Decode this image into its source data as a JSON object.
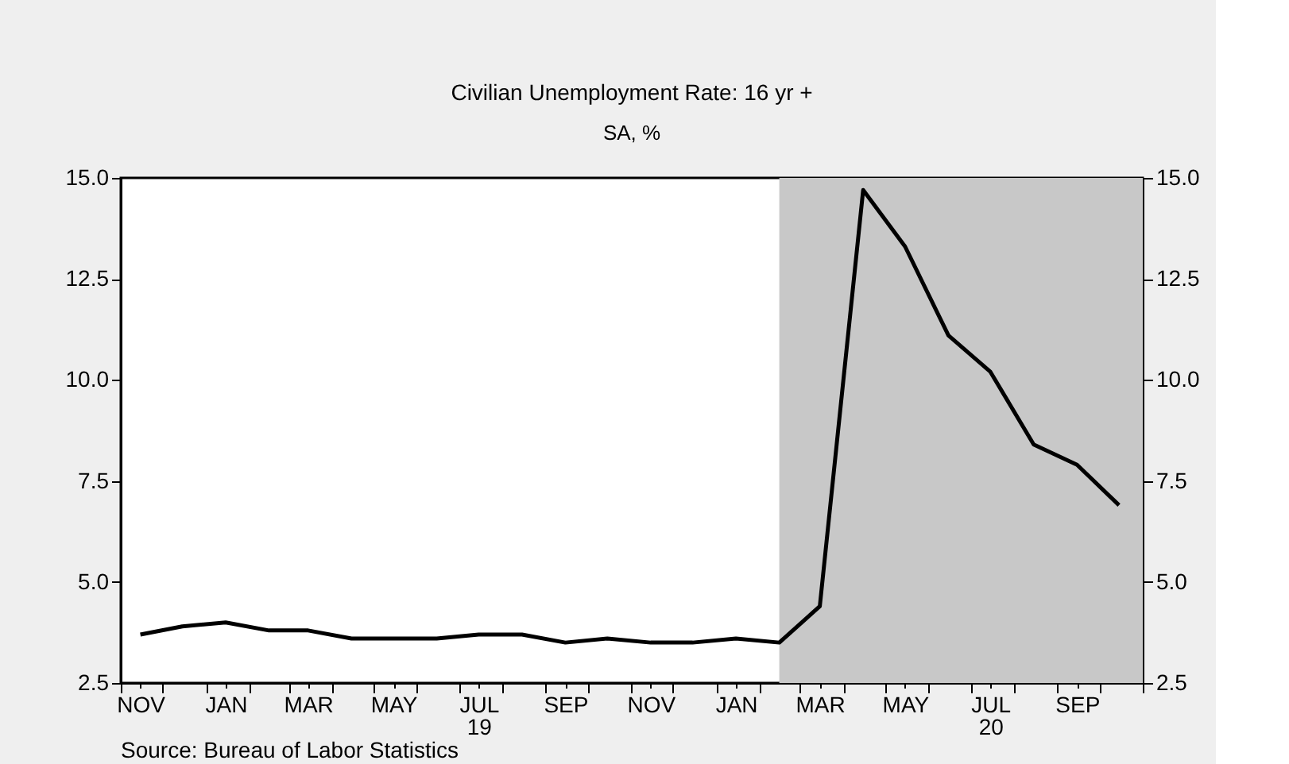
{
  "chart_data": {
    "type": "line",
    "title": "Civilian Unemployment Rate: 16 yr +",
    "subtitle": "SA, %",
    "annotations": [
      "Source:  Bureau of Labor Statistics"
    ],
    "x": [
      "2018-11-15",
      "2018-12-15",
      "2019-01-15",
      "2019-02-15",
      "2019-03-15",
      "2019-04-15",
      "2019-05-15",
      "2019-06-15",
      "2019-07-15",
      "2019-08-15",
      "2019-09-15",
      "2019-10-15",
      "2019-11-15",
      "2019-12-15",
      "2020-01-15",
      "2020-02-15",
      "2020-03-15",
      "2020-04-15",
      "2020-05-15",
      "2020-06-15",
      "2020-07-15",
      "2020-08-15",
      "2020-09-15",
      "2020-10-15"
    ],
    "series": [
      {
        "color": "#000000",
        "values": [
          3.7,
          3.9,
          4.0,
          3.8,
          3.8,
          3.6,
          3.6,
          3.6,
          3.7,
          3.7,
          3.5,
          3.6,
          3.5,
          3.5,
          3.6,
          3.5,
          4.4,
          14.7,
          13.3,
          11.1,
          10.2,
          8.4,
          7.9,
          6.9
        ]
      }
    ],
    "xlim": [
      "2018-11-01",
      "2020-11-01"
    ],
    "xticks": [
      {
        "value": "2018-11-01",
        "label": null
      },
      {
        "value": "2018-11-15",
        "label": "NOV"
      },
      {
        "value": "2018-12-01",
        "label": null
      },
      {
        "value": "2019-01-01",
        "label": null
      },
      {
        "value": "2019-01-15",
        "label": "JAN"
      },
      {
        "value": "2019-02-01",
        "label": null
      },
      {
        "value": "2019-03-01",
        "label": null
      },
      {
        "value": "2019-03-15",
        "label": "MAR"
      },
      {
        "value": "2019-04-01",
        "label": null
      },
      {
        "value": "2019-05-01",
        "label": null
      },
      {
        "value": "2019-05-15",
        "label": "MAY"
      },
      {
        "value": "2019-06-01",
        "label": null
      },
      {
        "value": "2019-07-01",
        "label": null
      },
      {
        "value": "2019-07-15",
        "label": "JUL\n19"
      },
      {
        "value": "2019-08-01",
        "label": null
      },
      {
        "value": "2019-09-01",
        "label": null
      },
      {
        "value": "2019-09-15",
        "label": "SEP"
      },
      {
        "value": "2019-10-01",
        "label": null
      },
      {
        "value": "2019-11-01",
        "label": null
      },
      {
        "value": "2019-11-15",
        "label": "NOV"
      },
      {
        "value": "2019-12-01",
        "label": null
      },
      {
        "value": "2020-01-01",
        "label": null
      },
      {
        "value": "2020-01-15",
        "label": "JAN"
      },
      {
        "value": "2020-02-01",
        "label": null
      },
      {
        "value": "2020-03-01",
        "label": null
      },
      {
        "value": "2020-03-15",
        "label": "MAR"
      },
      {
        "value": "2020-04-01",
        "label": null
      },
      {
        "value": "2020-05-01",
        "label": null
      },
      {
        "value": "2020-05-15",
        "label": "MAY"
      },
      {
        "value": "2020-06-01",
        "label": null
      },
      {
        "value": "2020-07-01",
        "label": null
      },
      {
        "value": "2020-07-15",
        "label": "JUL\n20"
      },
      {
        "value": "2020-08-01",
        "label": null
      },
      {
        "value": "2020-09-01",
        "label": null
      },
      {
        "value": "2020-09-15",
        "label": "SEP"
      },
      {
        "value": "2020-10-01",
        "label": null
      },
      {
        "value": "2020-11-01",
        "label": null
      }
    ],
    "ylim": [
      2.5,
      15.0
    ],
    "yticks": [
      {
        "value": 2.5,
        "label": "2.5"
      },
      {
        "value": 5,
        "label": "5.0"
      },
      {
        "value": 7.5,
        "label": "7.5"
      },
      {
        "value": 10,
        "label": "10.0"
      },
      {
        "value": 12.5,
        "label": "12.5"
      },
      {
        "value": 15,
        "label": "15.0"
      }
    ],
    "y2lim": [
      2.5,
      15.0
    ],
    "y2ticks": [
      {
        "value": 2.5,
        "label": "2.5"
      },
      {
        "value": 5,
        "label": "5.0"
      },
      {
        "value": 7.5,
        "label": "7.5"
      },
      {
        "value": 10,
        "label": "10.0"
      },
      {
        "value": 12.5,
        "label": "12.5"
      },
      {
        "value": 15,
        "label": "15.0"
      }
    ],
    "bands": [
      {
        "axis": "x",
        "from": "2020-02-15",
        "to": "2020-11-01",
        "color": "#c8c8c8"
      }
    ],
    "grid": false,
    "legend": false,
    "line_style": "solid",
    "marker": "none"
  }
}
